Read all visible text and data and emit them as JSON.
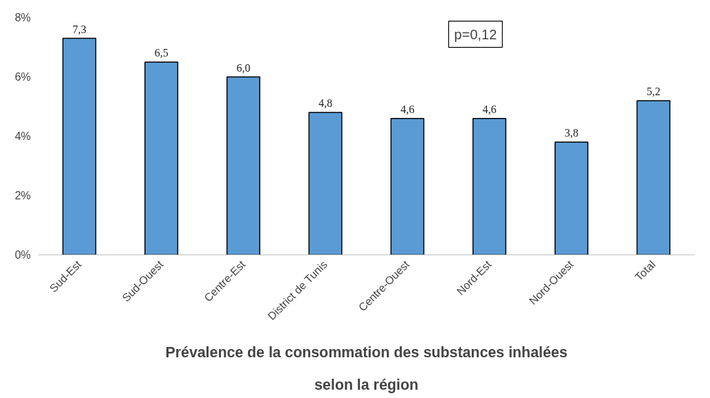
{
  "chart_data": {
    "type": "bar",
    "title": "Prévalence de la consommation des substances inhalées\nselon la région",
    "categories": [
      "Sud-Est",
      "Sud-Ouest",
      "Centre-Est",
      "District de Tunis",
      "Centre-Ouest",
      "Nord-Est",
      "Nord-Ouest",
      "Total"
    ],
    "values": [
      7.3,
      6.5,
      6.0,
      4.8,
      4.6,
      4.6,
      3.8,
      5.2
    ],
    "value_labels": [
      "7,3",
      "6,5",
      "6,0",
      "4,8",
      "4,6",
      "4,6",
      "3,8",
      "5,2"
    ],
    "color": "#5b9bd5",
    "ylim": [
      0,
      8
    ],
    "yticks": [
      {
        "value": 0,
        "label": "0%"
      },
      {
        "value": 2,
        "label": "2%"
      },
      {
        "value": 4,
        "label": "4%"
      },
      {
        "value": 6,
        "label": "6%"
      },
      {
        "value": 8,
        "label": "8%"
      }
    ],
    "annotations": [
      "p=0,12"
    ],
    "grid": false
  }
}
